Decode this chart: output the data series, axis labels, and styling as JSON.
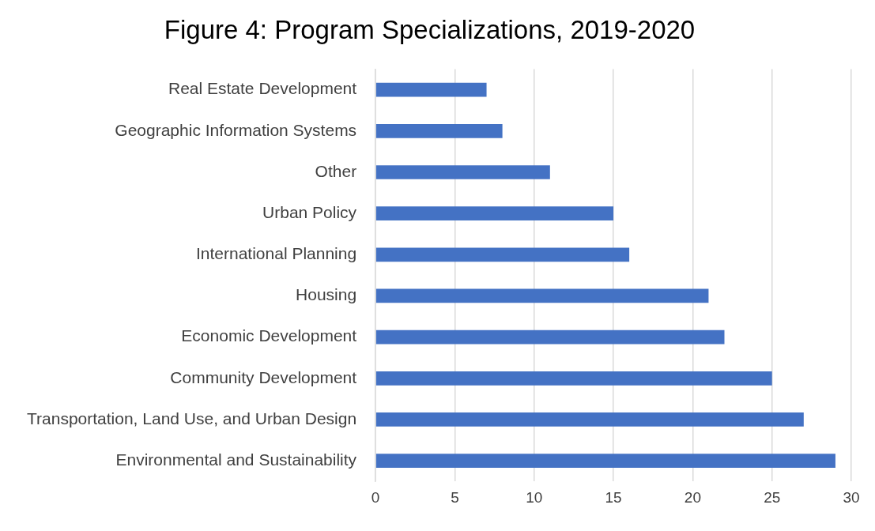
{
  "chart_data": {
    "type": "bar",
    "orientation": "horizontal",
    "title": "Figure 4: Program Specializations, 2019-2020",
    "categories": [
      "Real Estate Development",
      "Geographic Information Systems",
      "Other",
      "Urban Policy",
      "International Planning",
      "Housing",
      "Economic Development",
      "Community Development",
      "Transportation, Land Use, and Urban Design",
      "Environmental and Sustainability"
    ],
    "values": [
      7,
      8,
      11,
      15,
      16,
      21,
      22,
      25,
      27,
      29
    ],
    "color": "#4472c4",
    "xlim": [
      0,
      30
    ],
    "xticks": [
      0,
      5,
      10,
      15,
      20,
      25,
      30
    ],
    "grid": "x",
    "legend": false
  }
}
